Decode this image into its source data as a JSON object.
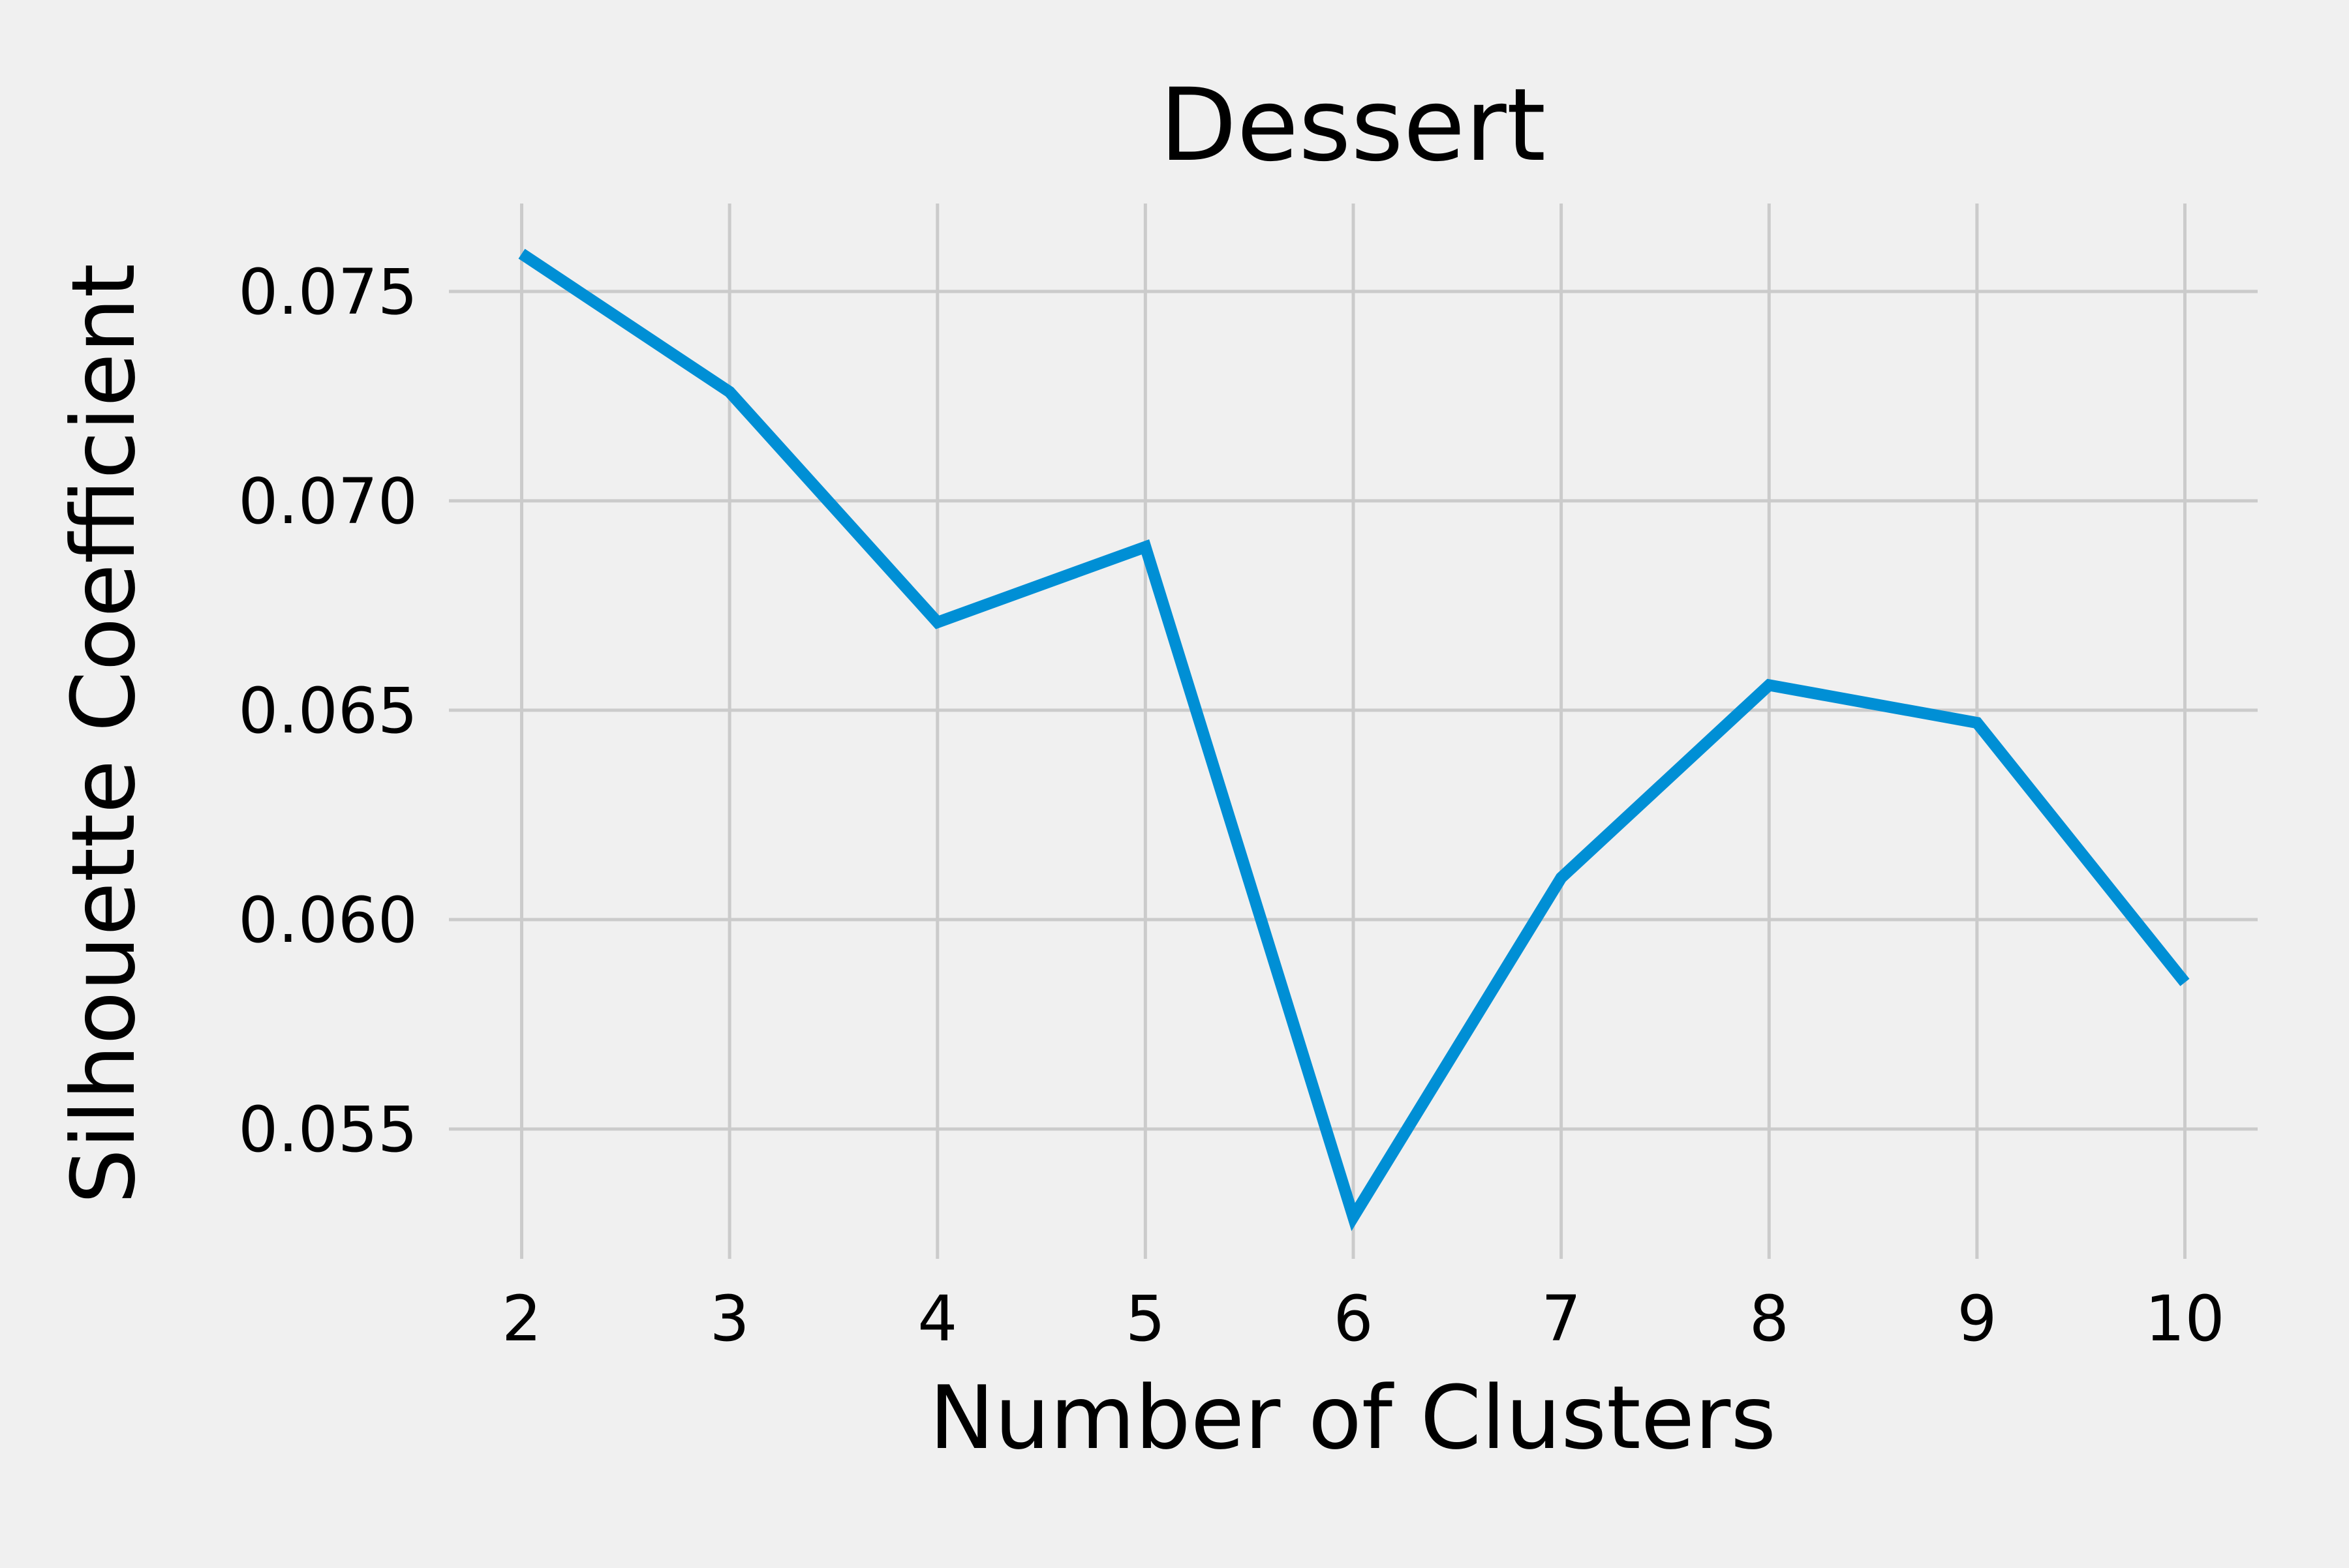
{
  "chart_data": {
    "type": "line",
    "title": "Dessert",
    "xlabel": "Number of Clusters",
    "ylabel": "Silhouette Coefficient",
    "x": [
      2,
      3,
      4,
      5,
      6,
      7,
      8,
      9,
      10
    ],
    "series": [
      {
        "values": [
          0.0759,
          0.0726,
          0.0671,
          0.0689,
          0.0529,
          0.061,
          0.0656,
          0.0647,
          0.0585
        ]
      }
    ],
    "xticks": [
      "2",
      "3",
      "4",
      "5",
      "6",
      "7",
      "8",
      "9",
      "10"
    ],
    "yticks": [
      0.055,
      0.06,
      0.065,
      0.07,
      0.075
    ],
    "ytick_labels": [
      "0.055",
      "0.060",
      "0.065",
      "0.070",
      "0.075"
    ],
    "xlim": [
      1.65,
      10.35
    ],
    "ylim": [
      0.0519,
      0.0771
    ],
    "grid": true,
    "legend": "none",
    "colors": {
      "background": "#f0f0f0",
      "grid": "#cbcbcb",
      "line": "#008fd5",
      "text": "#000000"
    }
  }
}
